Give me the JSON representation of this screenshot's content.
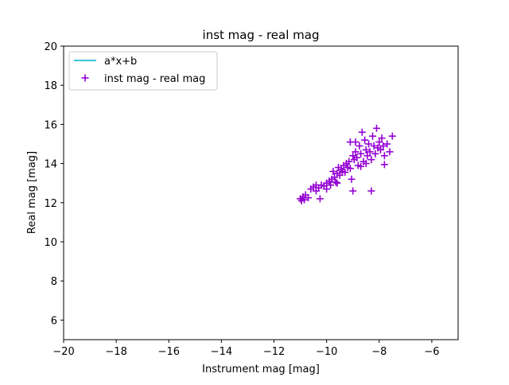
{
  "chart_data": {
    "type": "scatter",
    "title": "inst mag - real mag",
    "xlabel": "Instrument mag [mag]",
    "ylabel": "Real mag [mag]",
    "xlim": [
      -20,
      -5
    ],
    "ylim": [
      5,
      20
    ],
    "xticks": [
      -20,
      -18,
      -16,
      -14,
      -12,
      -10,
      -8,
      -6
    ],
    "yticks": [
      6,
      8,
      10,
      12,
      14,
      16,
      18,
      20
    ],
    "grid": false,
    "legend_position": "top-left",
    "series": [
      {
        "name": "a*x+b",
        "kind": "line",
        "color": "#17becf",
        "points": []
      },
      {
        "name": "inst mag - real mag",
        "kind": "scatter",
        "marker": "plus",
        "color": "#9400d3",
        "points": [
          [
            -11.0,
            12.2
          ],
          [
            -10.95,
            12.1
          ],
          [
            -10.9,
            12.3
          ],
          [
            -10.85,
            12.15
          ],
          [
            -10.8,
            12.4
          ],
          [
            -10.7,
            12.25
          ],
          [
            -10.6,
            12.7
          ],
          [
            -10.5,
            12.8
          ],
          [
            -10.4,
            12.6
          ],
          [
            -10.3,
            12.75
          ],
          [
            -10.25,
            12.2
          ],
          [
            -10.2,
            12.9
          ],
          [
            -10.1,
            12.85
          ],
          [
            -10.0,
            13.0
          ],
          [
            -10.0,
            12.7
          ],
          [
            -9.9,
            13.1
          ],
          [
            -9.85,
            12.9
          ],
          [
            -9.8,
            13.2
          ],
          [
            -9.75,
            13.6
          ],
          [
            -9.7,
            13.3
          ],
          [
            -9.65,
            13.05
          ],
          [
            -9.6,
            13.5
          ],
          [
            -9.55,
            13.8
          ],
          [
            -9.5,
            13.4
          ],
          [
            -9.45,
            13.7
          ],
          [
            -9.4,
            13.6
          ],
          [
            -9.35,
            13.9
          ],
          [
            -9.3,
            13.55
          ],
          [
            -9.25,
            14.0
          ],
          [
            -9.2,
            13.8
          ],
          [
            -9.15,
            14.1
          ],
          [
            -9.1,
            13.75
          ],
          [
            -9.05,
            13.2
          ],
          [
            -9.0,
            14.4
          ],
          [
            -8.95,
            14.2
          ],
          [
            -8.9,
            14.6
          ],
          [
            -8.85,
            14.3
          ],
          [
            -8.8,
            13.9
          ],
          [
            -8.75,
            14.9
          ],
          [
            -8.7,
            14.5
          ],
          [
            -8.65,
            15.6
          ],
          [
            -8.6,
            14.1
          ],
          [
            -8.55,
            15.2
          ],
          [
            -8.5,
            14.7
          ],
          [
            -8.45,
            14.4
          ],
          [
            -8.4,
            15.0
          ],
          [
            -8.35,
            14.6
          ],
          [
            -8.3,
            14.2
          ],
          [
            -8.25,
            15.4
          ],
          [
            -8.2,
            14.9
          ],
          [
            -8.15,
            14.5
          ],
          [
            -8.1,
            15.8
          ],
          [
            -8.05,
            14.8
          ],
          [
            -8.0,
            15.1
          ],
          [
            -7.95,
            14.7
          ],
          [
            -7.9,
            15.3
          ],
          [
            -7.85,
            14.9
          ],
          [
            -7.8,
            14.4
          ],
          [
            -7.7,
            15.0
          ],
          [
            -7.6,
            14.6
          ],
          [
            -7.5,
            15.4
          ],
          [
            -8.3,
            12.6
          ],
          [
            -9.0,
            12.6
          ],
          [
            -7.8,
            13.95
          ],
          [
            -8.7,
            13.85
          ],
          [
            -9.6,
            13.0
          ],
          [
            -10.4,
            12.9
          ],
          [
            -8.9,
            15.1
          ],
          [
            -9.1,
            15.1
          ],
          [
            -8.5,
            14.0
          ]
        ]
      }
    ]
  }
}
